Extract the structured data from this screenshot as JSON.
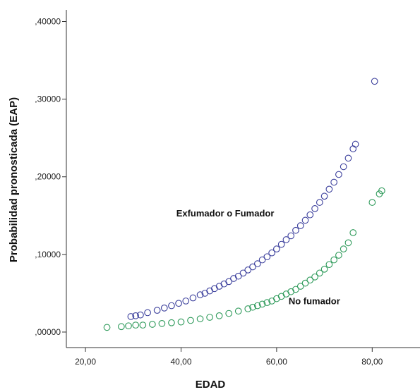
{
  "chart_data": {
    "type": "scatter",
    "title": "",
    "xlabel": "EDAD",
    "ylabel": "Probabilidad pronosticada (EAP)",
    "xlim": [
      16,
      90
    ],
    "ylim": [
      -0.02,
      0.415
    ],
    "x_ticks": [
      20,
      40,
      60,
      80
    ],
    "x_tick_labels": [
      "20,00",
      "40,00",
      "60,00",
      "80,00"
    ],
    "y_ticks": [
      0.0,
      0.1,
      0.2,
      0.3,
      0.4
    ],
    "y_tick_labels": [
      ",00000",
      ",10000",
      ",20000",
      ",30000",
      ",40000"
    ],
    "grid": false,
    "legend": "none",
    "annotations": [
      {
        "text": "Exfumador o Fumador",
        "x": 39,
        "y": 0.149
      },
      {
        "text": "No fumador",
        "x": 62.5,
        "y": 0.036
      }
    ],
    "series": [
      {
        "color": "#3b3f9c",
        "values": [
          [
            29.5,
            0.02
          ],
          [
            30.5,
            0.021
          ],
          [
            31.5,
            0.022
          ],
          [
            33,
            0.025
          ],
          [
            35,
            0.028
          ],
          [
            36.5,
            0.031
          ],
          [
            38,
            0.034
          ],
          [
            39.5,
            0.037
          ],
          [
            41,
            0.04
          ],
          [
            42.5,
            0.044
          ],
          [
            44,
            0.048
          ],
          [
            45,
            0.05
          ],
          [
            46,
            0.053
          ],
          [
            47,
            0.056
          ],
          [
            48,
            0.059
          ],
          [
            49,
            0.062
          ],
          [
            50,
            0.065
          ],
          [
            51,
            0.069
          ],
          [
            52,
            0.072
          ],
          [
            53,
            0.076
          ],
          [
            54,
            0.08
          ],
          [
            55,
            0.084
          ],
          [
            56,
            0.088
          ],
          [
            57,
            0.093
          ],
          [
            58,
            0.097
          ],
          [
            59,
            0.102
          ],
          [
            60,
            0.107
          ],
          [
            61,
            0.113
          ],
          [
            62,
            0.119
          ],
          [
            63,
            0.124
          ],
          [
            64,
            0.131
          ],
          [
            65,
            0.137
          ],
          [
            66,
            0.144
          ],
          [
            67,
            0.151
          ],
          [
            68,
            0.159
          ],
          [
            69,
            0.167
          ],
          [
            70,
            0.175
          ],
          [
            71,
            0.184
          ],
          [
            72,
            0.193
          ],
          [
            73,
            0.203
          ],
          [
            74,
            0.213
          ],
          [
            75,
            0.224
          ],
          [
            76,
            0.236
          ],
          [
            76.5,
            0.242
          ],
          [
            80.5,
            0.323
          ]
        ]
      },
      {
        "color": "#2e9a5a",
        "values": [
          [
            24.5,
            0.006
          ],
          [
            27.5,
            0.007
          ],
          [
            29,
            0.008
          ],
          [
            30.5,
            0.009
          ],
          [
            32,
            0.009
          ],
          [
            34,
            0.01
          ],
          [
            36,
            0.011
          ],
          [
            38,
            0.012
          ],
          [
            40,
            0.013
          ],
          [
            42,
            0.015
          ],
          [
            44,
            0.017
          ],
          [
            46,
            0.019
          ],
          [
            48,
            0.021
          ],
          [
            50,
            0.024
          ],
          [
            52,
            0.027
          ],
          [
            54,
            0.03
          ],
          [
            55,
            0.032
          ],
          [
            56,
            0.034
          ],
          [
            57,
            0.036
          ],
          [
            58,
            0.038
          ],
          [
            59,
            0.04
          ],
          [
            60,
            0.043
          ],
          [
            61,
            0.046
          ],
          [
            62,
            0.049
          ],
          [
            63,
            0.052
          ],
          [
            64,
            0.055
          ],
          [
            65,
            0.059
          ],
          [
            66,
            0.063
          ],
          [
            67,
            0.067
          ],
          [
            68,
            0.071
          ],
          [
            69,
            0.076
          ],
          [
            70,
            0.081
          ],
          [
            71,
            0.087
          ],
          [
            72,
            0.093
          ],
          [
            73,
            0.099
          ],
          [
            74,
            0.107
          ],
          [
            75,
            0.115
          ],
          [
            76,
            0.128
          ],
          [
            80,
            0.167
          ],
          [
            81.5,
            0.178
          ],
          [
            82,
            0.182
          ]
        ]
      }
    ]
  }
}
